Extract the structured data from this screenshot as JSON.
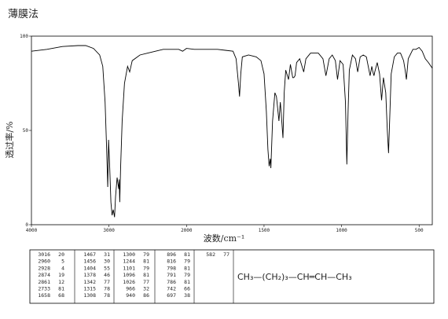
{
  "chart_data": {
    "type": "line",
    "title": "薄膜法",
    "x_label": "波数/cm⁻¹",
    "y_label": "透过率/%",
    "xlim": [
      4000,
      415
    ],
    "x_scale_break": 2000,
    "xticks": [
      4000,
      3000,
      2000,
      1500,
      1000,
      500
    ],
    "ylim": [
      0,
      100
    ],
    "yticks": [
      0,
      50,
      100
    ],
    "color": "#000000",
    "x": [
      4000,
      3800,
      3600,
      3400,
      3300,
      3200,
      3120,
      3080,
      3050,
      3030,
      3016,
      3005,
      2990,
      2975,
      2960,
      2945,
      2928,
      2915,
      2895,
      2874,
      2868,
      2861,
      2850,
      2830,
      2800,
      2760,
      2733,
      2700,
      2600,
      2500,
      2400,
      2300,
      2200,
      2100,
      2050,
      2000,
      1950,
      1900,
      1850,
      1800,
      1750,
      1700,
      1680,
      1665,
      1658,
      1650,
      1640,
      1600,
      1550,
      1520,
      1500,
      1485,
      1475,
      1467,
      1460,
      1456,
      1445,
      1430,
      1420,
      1410,
      1404,
      1395,
      1390,
      1378,
      1370,
      1360,
      1342,
      1330,
      1315,
      1308,
      1300,
      1290,
      1270,
      1244,
      1230,
      1200,
      1150,
      1120,
      1101,
      1096,
      1080,
      1060,
      1040,
      1026,
      1010,
      990,
      975,
      966,
      958,
      950,
      940,
      930,
      910,
      896,
      880,
      860,
      840,
      816,
      805,
      798,
      791,
      786,
      770,
      755,
      742,
      730,
      715,
      705,
      697,
      690,
      680,
      660,
      640,
      620,
      600,
      590,
      582,
      570,
      540,
      520,
      500,
      480,
      460,
      440,
      415
    ],
    "values": [
      92,
      93,
      94.5,
      95,
      95,
      93.5,
      90,
      84,
      65,
      40,
      20,
      45,
      30,
      12,
      5,
      8,
      4,
      15,
      25,
      19,
      24,
      12,
      30,
      55,
      75,
      84,
      81,
      87,
      90,
      91,
      92,
      93,
      93,
      93,
      92,
      93.5,
      93,
      93,
      93,
      93,
      92.5,
      92,
      88,
      75,
      68,
      80,
      89,
      90,
      89,
      87,
      80,
      60,
      40,
      31,
      35,
      30,
      55,
      70,
      68,
      60,
      55,
      65,
      60,
      46,
      70,
      82,
      77,
      85,
      78,
      78,
      79,
      86,
      88,
      81,
      88,
      91,
      91,
      88,
      79,
      81,
      88,
      90,
      87,
      77,
      87,
      85,
      65,
      32,
      60,
      82,
      86,
      90,
      88,
      81,
      89,
      90,
      89,
      79,
      84,
      81,
      79,
      81,
      86,
      80,
      66,
      78,
      70,
      50,
      38,
      55,
      80,
      89,
      91,
      91,
      87,
      82,
      77,
      88,
      93,
      93,
      94,
      92,
      88,
      86,
      83
    ]
  },
  "peak_table": {
    "columns": [
      [
        [
          3016,
          20
        ],
        [
          2960,
          5
        ],
        [
          2928,
          4
        ],
        [
          2874,
          19
        ],
        [
          2861,
          12
        ],
        [
          2733,
          81
        ],
        [
          1658,
          68
        ]
      ],
      [
        [
          1467,
          31
        ],
        [
          1456,
          30
        ],
        [
          1404,
          55
        ],
        [
          1378,
          46
        ],
        [
          1342,
          77
        ],
        [
          1315,
          78
        ],
        [
          1308,
          78
        ]
      ],
      [
        [
          1300,
          79
        ],
        [
          1244,
          81
        ],
        [
          1101,
          79
        ],
        [
          1096,
          81
        ],
        [
          1026,
          77
        ],
        [
          966,
          32
        ],
        [
          940,
          86
        ]
      ],
      [
        [
          896,
          81
        ],
        [
          816,
          79
        ],
        [
          798,
          81
        ],
        [
          791,
          79
        ],
        [
          786,
          81
        ],
        [
          742,
          66
        ],
        [
          697,
          38
        ]
      ],
      [
        [
          582,
          77
        ]
      ]
    ]
  },
  "structure": "CH₃—(CH₂)₃—CH═CH—CH₃"
}
